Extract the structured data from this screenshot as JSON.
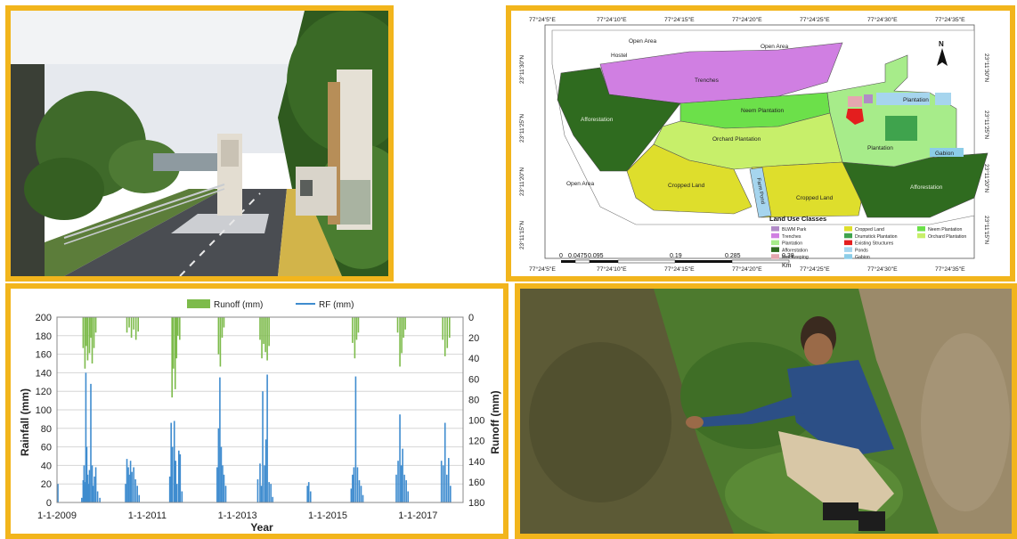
{
  "panels": {
    "entrance_photo": {
      "label": "Photo of campus entrance gate and road"
    },
    "map": {
      "top_coords": [
        "77°24'5\"E",
        "77°24'10\"E",
        "77°24'15\"E",
        "77°24'20\"E",
        "77°24'25\"E",
        "77°24'30\"E",
        "77°24'35\"E"
      ],
      "bottom_coords": [
        "77°24'5\"E",
        "77°24'10\"E",
        "77°24'15\"E",
        "77°24'20\"E",
        "77°24'25\"E",
        "77°24'30\"E",
        "77°24'35\"E"
      ],
      "left_coords": [
        "23°11'30\"N",
        "23°11'25\"N",
        "23°11'20\"N",
        "23°11'15\"N"
      ],
      "right_coords": [
        "23°11'30\"N",
        "23°11'25\"N",
        "23°11'20\"N",
        "23°11'15\"N"
      ],
      "areas": {
        "open_area_top_left": "Open Area",
        "open_area_top": "Open Area",
        "hostel": "Hostel",
        "trenches": "Trenches",
        "neem": "Neem Plantation",
        "afforestation_left": "Afforestation",
        "orchard": "Orchard Plantation",
        "plantation_right": "Plantation",
        "plantation_top_right": "Plantation",
        "gabion": "Gabion",
        "open_area_left": "Open Area",
        "cropped_left": "Cropped Land",
        "farm_pond": "Farm Pond",
        "cropped_right": "Cropped Land",
        "afforestation_right": "Afforestation"
      },
      "north": "N",
      "scale_labels": [
        "0",
        "0.0475",
        "0.095",
        "0.19",
        "0.285",
        "0.38"
      ],
      "scale_unit": "Km",
      "legend_title": "Land Use Classes",
      "legend": [
        {
          "label": "BLWM Park",
          "color": "#b18bc7"
        },
        {
          "label": "Trenches",
          "color": "#d07fe2"
        },
        {
          "label": "Plantation",
          "color": "#a7ec8a"
        },
        {
          "label": "Afforestation",
          "color": "#2f6b1f"
        },
        {
          "label": "Bee Keeping",
          "color": "#e5a7b0"
        },
        {
          "label": "Cropped Land",
          "color": "#dede2c"
        },
        {
          "label": "Drumstick Plantation",
          "color": "#3fa34d"
        },
        {
          "label": "Existing Structures",
          "color": "#e41e1e"
        },
        {
          "label": "Ponds",
          "color": "#a6d5ee"
        },
        {
          "label": "Gabion",
          "color": "#8ccde8"
        },
        {
          "label": "Neem Plantation",
          "color": "#6ce04a"
        },
        {
          "label": "Orchard Plantation",
          "color": "#c7ef6a"
        }
      ]
    },
    "pond_photo": {
      "label": "Photo of man collecting water sample at pond edge"
    }
  },
  "chart_data": {
    "type": "bar",
    "xlabel": "Year",
    "ylabel": "Rainfall (mm)",
    "y2label": "Runoff (mm)",
    "ylim": [
      0,
      200
    ],
    "y2lim": [
      0,
      180
    ],
    "yticks": [
      0,
      20,
      40,
      60,
      80,
      100,
      120,
      140,
      160,
      180,
      200
    ],
    "y2ticks": [
      0,
      20,
      40,
      60,
      80,
      100,
      120,
      140,
      160,
      180
    ],
    "y2_inverted": true,
    "xticks": [
      "1-1-2009",
      "1-1-2011",
      "1-1-2013",
      "1-1-2015",
      "1-1-2017"
    ],
    "xrange_years": [
      2009.0,
      2018.0
    ],
    "grid": true,
    "legend_position": "top",
    "colors": {
      "rainfall": "#3f8ccf",
      "runoff": "#7dbb4b"
    },
    "series": [
      {
        "name": "RF (mm)",
        "values": [
          [
            2009.02,
            20
          ],
          [
            2009.55,
            5
          ],
          [
            2009.58,
            24
          ],
          [
            2009.6,
            40
          ],
          [
            2009.62,
            22
          ],
          [
            2009.64,
            140
          ],
          [
            2009.66,
            60
          ],
          [
            2009.68,
            30
          ],
          [
            2009.7,
            20
          ],
          [
            2009.72,
            35
          ],
          [
            2009.75,
            128
          ],
          [
            2009.78,
            40
          ],
          [
            2009.8,
            18
          ],
          [
            2009.83,
            28
          ],
          [
            2009.86,
            38
          ],
          [
            2009.9,
            12
          ],
          [
            2009.95,
            5
          ],
          [
            2010.52,
            20
          ],
          [
            2010.55,
            47
          ],
          [
            2010.58,
            38
          ],
          [
            2010.6,
            30
          ],
          [
            2010.63,
            45
          ],
          [
            2010.66,
            33
          ],
          [
            2010.7,
            38
          ],
          [
            2010.74,
            25
          ],
          [
            2010.78,
            18
          ],
          [
            2010.82,
            8
          ],
          [
            2011.5,
            28
          ],
          [
            2011.53,
            86
          ],
          [
            2011.56,
            60
          ],
          [
            2011.6,
            88
          ],
          [
            2011.63,
            45
          ],
          [
            2011.66,
            20
          ],
          [
            2011.7,
            56
          ],
          [
            2011.73,
            52
          ],
          [
            2011.77,
            12
          ],
          [
            2012.55,
            38
          ],
          [
            2012.58,
            80
          ],
          [
            2012.61,
            135
          ],
          [
            2012.64,
            60
          ],
          [
            2012.67,
            40
          ],
          [
            2012.7,
            30
          ],
          [
            2012.74,
            18
          ],
          [
            2013.45,
            25
          ],
          [
            2013.5,
            42
          ],
          [
            2013.53,
            18
          ],
          [
            2013.56,
            120
          ],
          [
            2013.6,
            40
          ],
          [
            2013.63,
            68
          ],
          [
            2013.66,
            138
          ],
          [
            2013.7,
            22
          ],
          [
            2013.74,
            20
          ],
          [
            2013.78,
            6
          ],
          [
            2014.55,
            18
          ],
          [
            2014.58,
            22
          ],
          [
            2014.62,
            12
          ],
          [
            2015.52,
            15
          ],
          [
            2015.55,
            30
          ],
          [
            2015.58,
            38
          ],
          [
            2015.62,
            136
          ],
          [
            2015.66,
            38
          ],
          [
            2015.7,
            24
          ],
          [
            2015.74,
            18
          ],
          [
            2015.78,
            8
          ],
          [
            2016.52,
            30
          ],
          [
            2016.56,
            45
          ],
          [
            2016.6,
            95
          ],
          [
            2016.63,
            40
          ],
          [
            2016.66,
            58
          ],
          [
            2016.7,
            30
          ],
          [
            2016.74,
            24
          ],
          [
            2016.78,
            12
          ],
          [
            2017.52,
            45
          ],
          [
            2017.56,
            40
          ],
          [
            2017.6,
            86
          ],
          [
            2017.64,
            30
          ],
          [
            2017.68,
            48
          ],
          [
            2017.72,
            18
          ]
        ]
      },
      {
        "name": "Runoff (mm)",
        "values": [
          [
            2009.58,
            30
          ],
          [
            2009.62,
            50
          ],
          [
            2009.65,
            28
          ],
          [
            2009.68,
            42
          ],
          [
            2009.72,
            35
          ],
          [
            2009.75,
            20
          ],
          [
            2009.78,
            45
          ],
          [
            2009.82,
            30
          ],
          [
            2009.86,
            15
          ],
          [
            2010.55,
            15
          ],
          [
            2010.6,
            10
          ],
          [
            2010.65,
            20
          ],
          [
            2010.7,
            12
          ],
          [
            2010.75,
            22
          ],
          [
            2010.8,
            14
          ],
          [
            2011.55,
            78
          ],
          [
            2011.58,
            50
          ],
          [
            2011.62,
            70
          ],
          [
            2011.65,
            40
          ],
          [
            2011.68,
            18
          ],
          [
            2011.72,
            22
          ],
          [
            2012.58,
            36
          ],
          [
            2012.62,
            48
          ],
          [
            2012.66,
            20
          ],
          [
            2012.7,
            10
          ],
          [
            2013.5,
            22
          ],
          [
            2013.54,
            40
          ],
          [
            2013.58,
            26
          ],
          [
            2013.62,
            34
          ],
          [
            2013.66,
            42
          ],
          [
            2013.7,
            28
          ],
          [
            2015.55,
            25
          ],
          [
            2015.6,
            40
          ],
          [
            2015.64,
            22
          ],
          [
            2015.68,
            15
          ],
          [
            2016.55,
            15
          ],
          [
            2016.6,
            48
          ],
          [
            2016.64,
            35
          ],
          [
            2016.68,
            20
          ],
          [
            2016.72,
            12
          ],
          [
            2017.55,
            22
          ],
          [
            2017.6,
            38
          ],
          [
            2017.65,
            30
          ],
          [
            2017.7,
            20
          ]
        ]
      }
    ]
  }
}
